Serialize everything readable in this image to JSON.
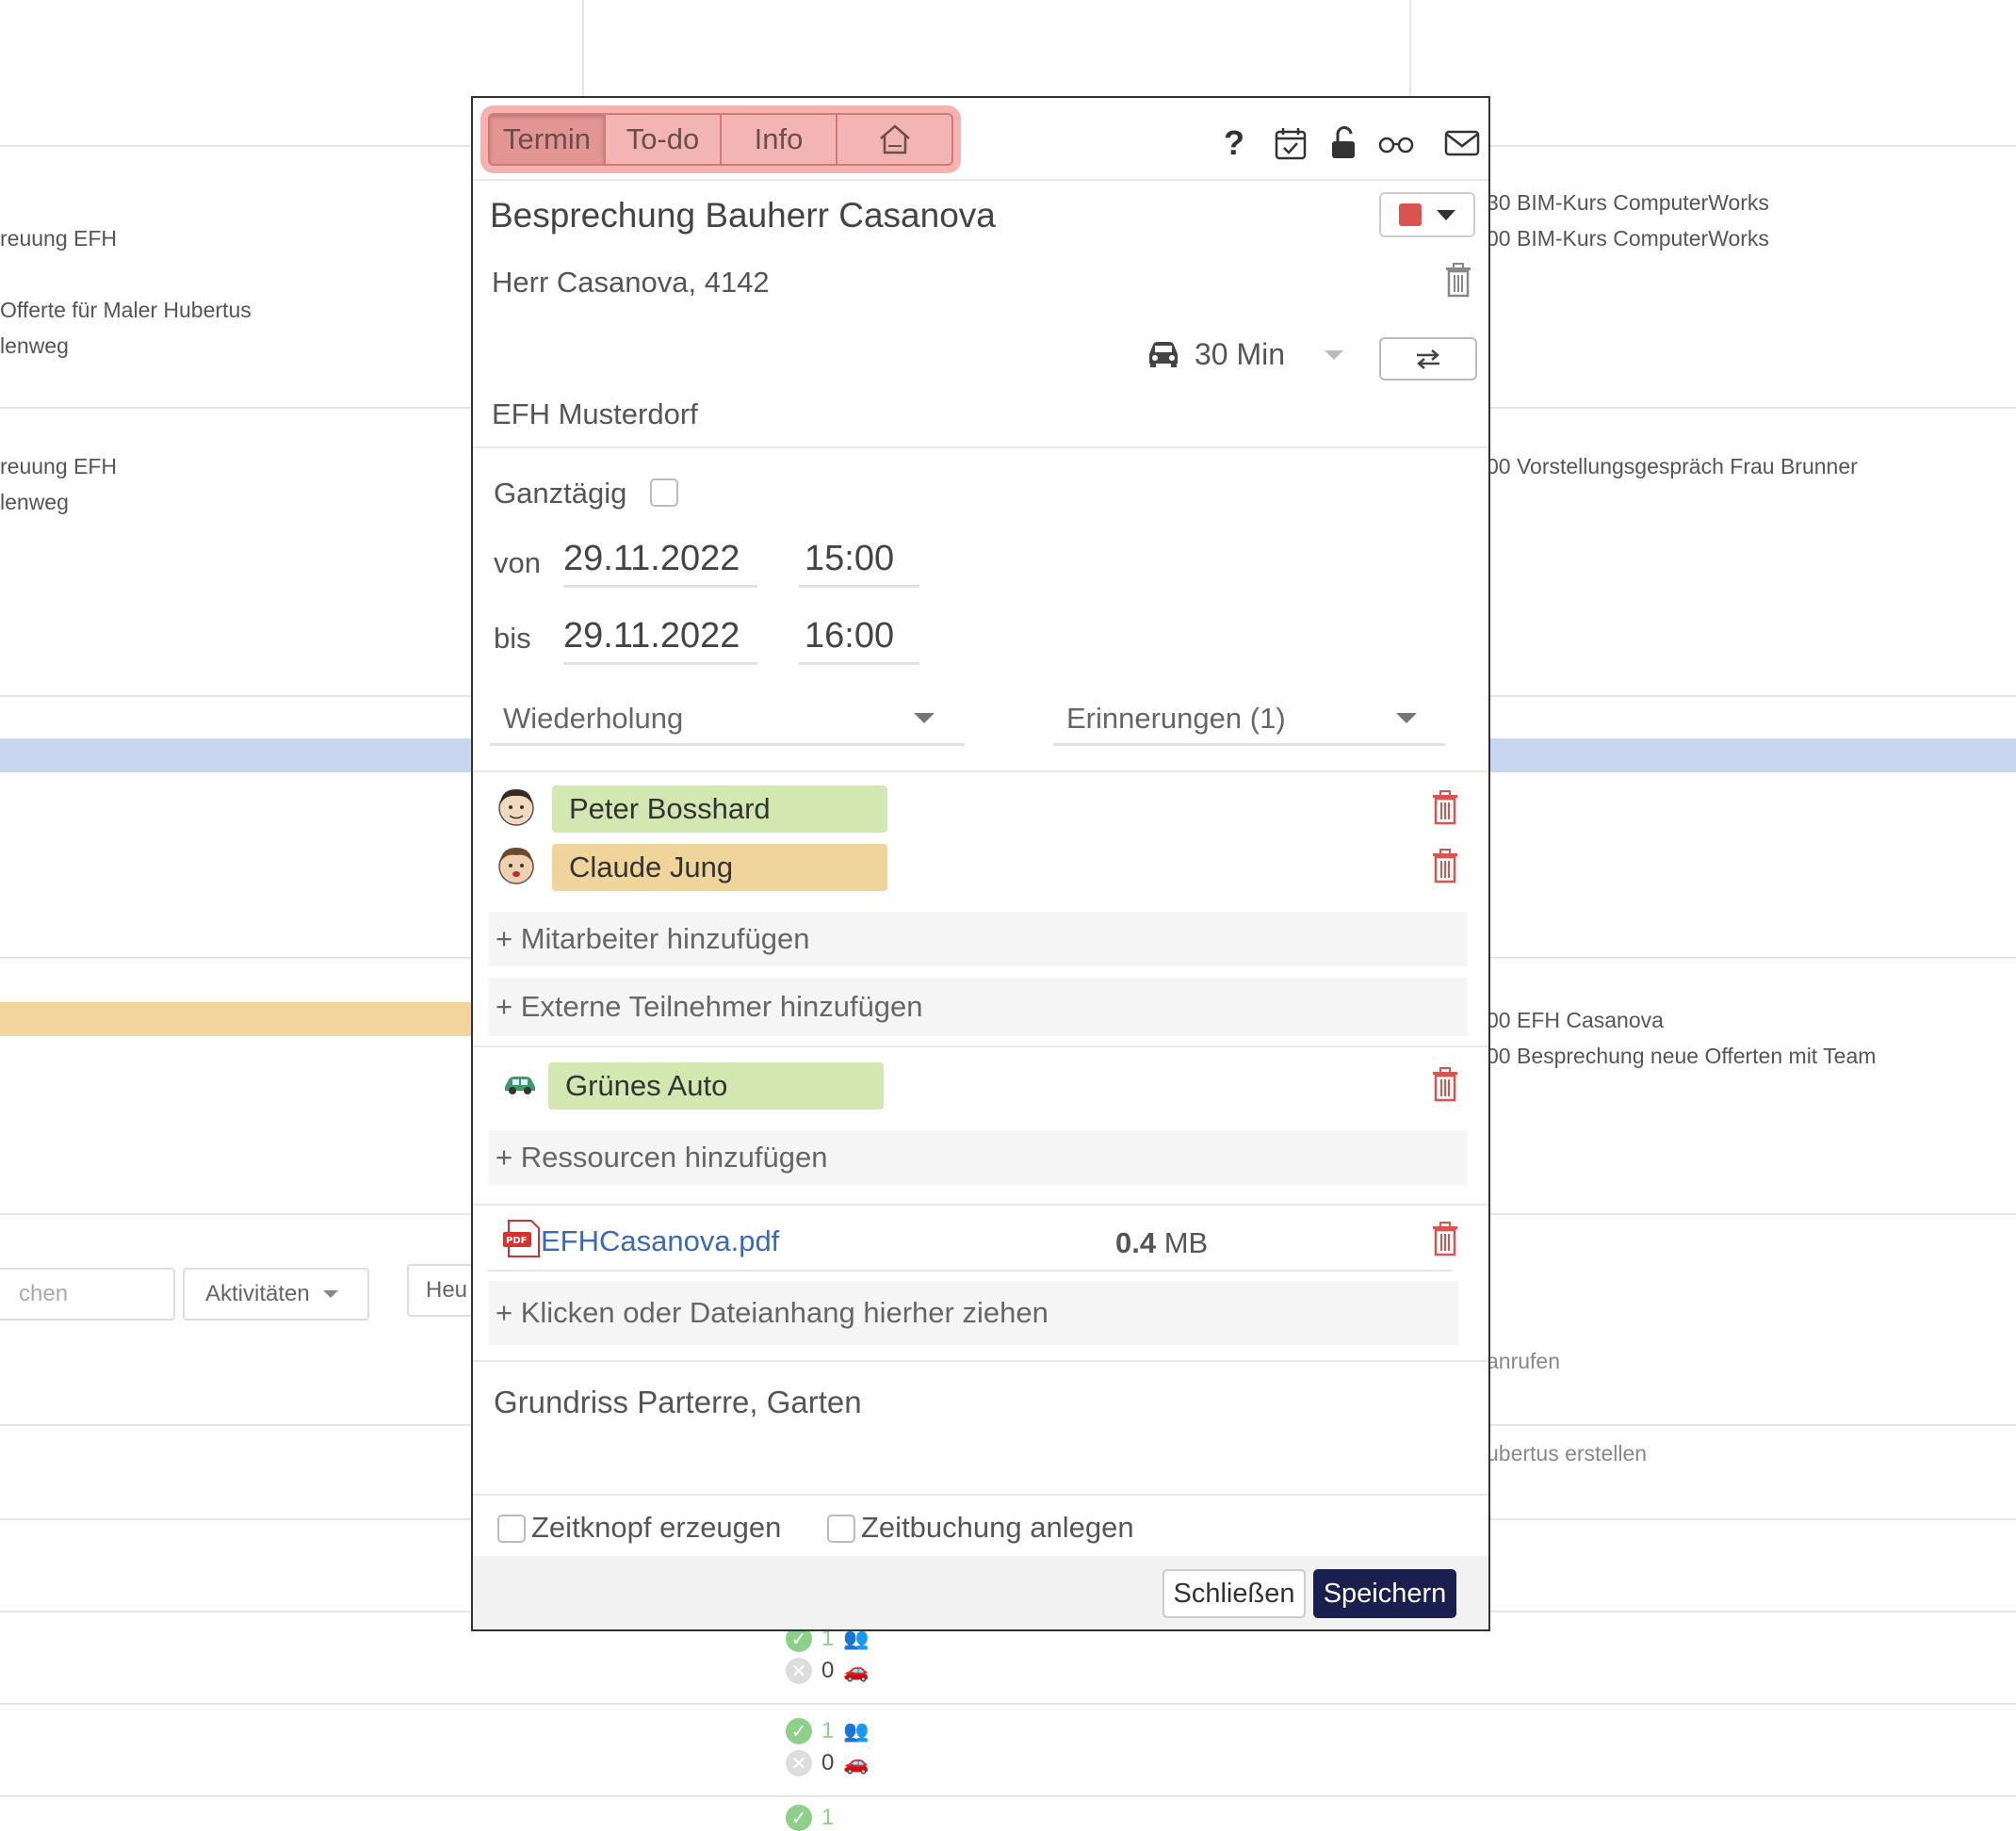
{
  "background": {
    "left_col": [
      "reuung EFH",
      "Offerte für Maler Hubertus",
      "lenweg",
      "reuung EFH",
      "lenweg"
    ],
    "right_col": [
      "30 BIM-Kurs ComputerWorks",
      "00 BIM-Kurs ComputerWorks",
      "00 Vorstellungsgespräch Frau Brunner",
      "00 EFH Casanova",
      "00 Besprechung neue Offerten mit Team",
      "anrufen",
      "ubertus erstellen"
    ],
    "search_placeholder": "chen",
    "activities_label": "Aktivitäten",
    "today_label": "Heu",
    "stats": [
      {
        "people": "1",
        "cars": "0"
      },
      {
        "people": "1",
        "cars": "0"
      },
      {
        "people": "1",
        "cars": ""
      }
    ],
    "colors": {
      "blue_band": "#c7d5ee",
      "yellow_band": "#f2d49c"
    }
  },
  "dialog": {
    "tabs": [
      "Termin",
      "To-do",
      "Info",
      "home-icon"
    ],
    "active_tab": "Termin",
    "toolbar_icons": [
      "help-icon",
      "calendar-check-icon",
      "unlock-icon",
      "glasses-icon",
      "mail-icon"
    ],
    "title": "Besprechung Bauherr Casanova",
    "color": "#d9534f",
    "contact": "Herr Casanova, 4142",
    "travel_time": "30 Min",
    "project": "EFH Musterdorf",
    "all_day_label": "Ganztägig",
    "from_label": "von",
    "from_date": "29.11.2022",
    "from_time": "15:00",
    "to_label": "bis",
    "to_date": "29.11.2022",
    "to_time": "16:00",
    "repeat_label": "Wiederholung",
    "reminders_label": "Erinnerungen (1)",
    "participants": [
      {
        "name": "Peter Bosshard",
        "color": "#d2e8b0"
      },
      {
        "name": "Claude Jung",
        "color": "#efd59c"
      }
    ],
    "add_employee": "+ Mitarbeiter hinzufügen",
    "add_external": "+ Externe Teilnehmer hinzufügen",
    "resources": [
      {
        "name": "Grünes Auto",
        "color": "#d2e8b0"
      }
    ],
    "add_resource": "+ Ressourcen hinzufügen",
    "attachment": {
      "name": "EFHCasanova.pdf",
      "size_num": "0.4",
      "size_unit": "MB"
    },
    "add_attachment": "+ Klicken oder Dateianhang hierher ziehen",
    "notes": "Grundriss Parterre, Garten",
    "create_timer_label": "Zeitknopf erzeugen",
    "create_booking_label": "Zeitbuchung anlegen",
    "close_label": "Schließen",
    "save_label": "Speichern"
  }
}
